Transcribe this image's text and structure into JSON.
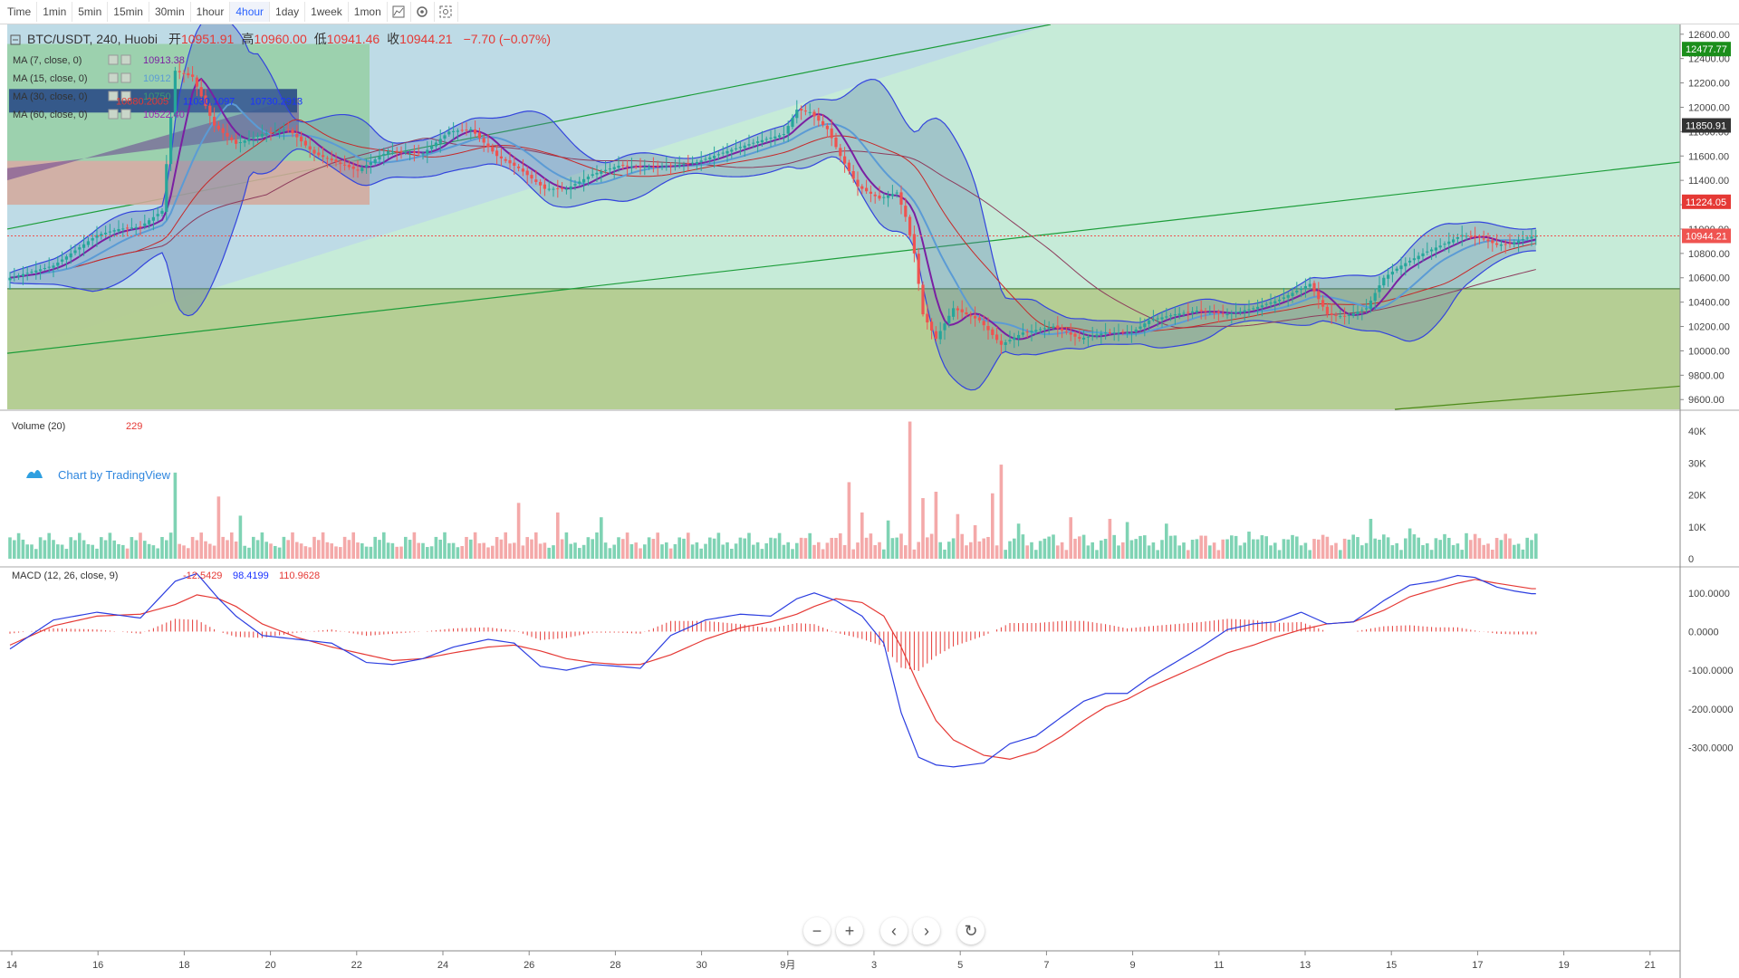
{
  "toolbar": {
    "items": [
      {
        "label": "Time",
        "name": "tf-time"
      },
      {
        "label": "1min",
        "name": "tf-1min"
      },
      {
        "label": "5min",
        "name": "tf-5min"
      },
      {
        "label": "15min",
        "name": "tf-15min"
      },
      {
        "label": "30min",
        "name": "tf-30min"
      },
      {
        "label": "1hour",
        "name": "tf-1hour"
      },
      {
        "label": "4hour",
        "name": "tf-4hour",
        "active": true
      },
      {
        "label": "1day",
        "name": "tf-1day"
      },
      {
        "label": "1week",
        "name": "tf-1week"
      },
      {
        "label": "1mon",
        "name": "tf-1mon"
      }
    ],
    "icons": [
      "chart-style-icon",
      "settings-icon",
      "screenshot-icon"
    ]
  },
  "legend": {
    "symbol": "BTC/USDT, 240, Huobi",
    "open_label": "开",
    "open": "10951.91",
    "high_label": "高",
    "high": "10960.00",
    "low_label": "低",
    "low": "10941.46",
    "close_label": "收",
    "close": "10944.21",
    "change": "−7.70 (−0.07%)",
    "indicators": [
      {
        "label": "MA (7, close, 0)",
        "value": "10913.38",
        "color": "#7b1fa2"
      },
      {
        "label": "MA (15, close, 0)",
        "value": "10912",
        "color": "#5b9bd5"
      },
      {
        "label": "MA (30, close, 0)",
        "value": "10750",
        "color": "#3d9970"
      },
      {
        "label": "MA (60, close, 0)",
        "value": "10522.40",
        "color": "#9c27b0"
      }
    ],
    "bb_values": [
      "10880.2005",
      "11030.1097",
      "10730.2913"
    ]
  },
  "volume_legend": {
    "label": "Volume (20)",
    "value": "229"
  },
  "macd_legend": {
    "label": "MACD (12, 26, close, 9)",
    "hist": "-12.5429",
    "macd": "98.4199",
    "signal": "110.9628"
  },
  "watermark": "Chart by TradingView",
  "price_badges": [
    {
      "value": "12477.77",
      "color": "#1b8e1b"
    },
    {
      "value": "11850.91",
      "color": "#333333"
    },
    {
      "value": "11224.05",
      "color": "#e53935"
    },
    {
      "value": "10944.21",
      "color": "#ef5350"
    }
  ],
  "colors": {
    "up": "#26a69a",
    "up_fill": "#7fd3b4",
    "down": "#ef5350",
    "down_fill": "#f4a9a9"
  },
  "chart_data": [
    {
      "type": "candlestick",
      "title": "BTC/USDT, 240, Huobi",
      "x_ticks": [
        "14",
        "16",
        "18",
        "20",
        "22",
        "24",
        "26",
        "28",
        "30",
        "9月",
        "3",
        "5",
        "7",
        "9",
        "11",
        "13",
        "15",
        "17",
        "19",
        "21"
      ],
      "y_ticks": [
        "12600.00",
        "12400.00",
        "12200.00",
        "12000.00",
        "11800.00",
        "11600.00",
        "11400.00",
        "11200.00",
        "11000.00",
        "10800.00",
        "10600.00",
        "10400.00",
        "10200.00",
        "10000.00",
        "9800.00",
        "9600.00"
      ],
      "ylim": [
        9520,
        12680
      ],
      "close_anchors": [
        [
          0,
          10600
        ],
        [
          10,
          10700
        ],
        [
          20,
          10950
        ],
        [
          25,
          11000
        ],
        [
          30,
          11020
        ],
        [
          35,
          11150
        ],
        [
          38,
          12300
        ],
        [
          42,
          12250
        ],
        [
          47,
          11850
        ],
        [
          52,
          11700
        ],
        [
          58,
          11780
        ],
        [
          64,
          11820
        ],
        [
          70,
          11620
        ],
        [
          75,
          11550
        ],
        [
          80,
          11480
        ],
        [
          87,
          11640
        ],
        [
          95,
          11620
        ],
        [
          101,
          11800
        ],
        [
          106,
          11820
        ],
        [
          112,
          11600
        ],
        [
          117,
          11500
        ],
        [
          123,
          11330
        ],
        [
          128,
          11330
        ],
        [
          134,
          11450
        ],
        [
          140,
          11520
        ],
        [
          145,
          11510
        ],
        [
          152,
          11520
        ],
        [
          158,
          11550
        ],
        [
          165,
          11640
        ],
        [
          172,
          11720
        ],
        [
          178,
          11780
        ],
        [
          181,
          11980
        ],
        [
          184,
          11960
        ],
        [
          188,
          11820
        ],
        [
          191,
          11600
        ],
        [
          195,
          11350
        ],
        [
          200,
          11250
        ],
        [
          204,
          11300
        ],
        [
          206,
          11100
        ],
        [
          208,
          10800
        ],
        [
          210,
          10300
        ],
        [
          213,
          10100
        ],
        [
          217,
          10350
        ],
        [
          223,
          10250
        ],
        [
          228,
          10050
        ],
        [
          233,
          10150
        ],
        [
          240,
          10200
        ],
        [
          246,
          10100
        ],
        [
          252,
          10150
        ],
        [
          258,
          10150
        ],
        [
          262,
          10250
        ],
        [
          268,
          10300
        ],
        [
          273,
          10330
        ],
        [
          280,
          10300
        ],
        [
          286,
          10350
        ],
        [
          292,
          10420
        ],
        [
          299,
          10550
        ],
        [
          303,
          10300
        ],
        [
          307,
          10280
        ],
        [
          312,
          10350
        ],
        [
          316,
          10600
        ],
        [
          320,
          10700
        ],
        [
          325,
          10800
        ],
        [
          330,
          10880
        ],
        [
          334,
          10950
        ],
        [
          338,
          10930
        ],
        [
          342,
          10870
        ],
        [
          345,
          10880
        ],
        [
          349,
          10930
        ],
        [
          351,
          10944
        ]
      ],
      "ma7_color": "#7b1fa2",
      "ma15_color": "#5b9bd5",
      "ma30_color": "#c62828",
      "ma60_color": "#8d3b5c",
      "bb_color": "#3344dd"
    },
    {
      "type": "bar",
      "title": "Volume (20)",
      "y_ticks": [
        "40K",
        "30K",
        "20K",
        "10K",
        "0"
      ],
      "ylim": [
        0,
        44000
      ],
      "spikes": [
        [
          38,
          27000
        ],
        [
          48,
          19500
        ],
        [
          53,
          13500
        ],
        [
          117,
          17500
        ],
        [
          126,
          14500
        ],
        [
          136,
          13000
        ],
        [
          193,
          24000
        ],
        [
          196,
          14500
        ],
        [
          202,
          12000
        ],
        [
          207,
          43000
        ],
        [
          210,
          19000
        ],
        [
          213,
          21000
        ],
        [
          218,
          14000
        ],
        [
          222,
          10500
        ],
        [
          226,
          20500
        ],
        [
          228,
          29500
        ],
        [
          232,
          11000
        ],
        [
          244,
          13000
        ],
        [
          253,
          12500
        ],
        [
          257,
          11500
        ],
        [
          266,
          11000
        ],
        [
          285,
          8500
        ],
        [
          313,
          12500
        ],
        [
          322,
          9500
        ],
        [
          335,
          8000
        ]
      ]
    },
    {
      "type": "line",
      "title": "MACD (12, 26, close, 9)",
      "y_ticks": [
        "100.0000",
        "0.0000",
        "-100.0000",
        "-200.0000",
        "-300.0000"
      ],
      "ylim": [
        -355,
        165
      ],
      "macd_anchors": [
        [
          0,
          -45
        ],
        [
          10,
          30
        ],
        [
          20,
          50
        ],
        [
          30,
          35
        ],
        [
          38,
          130
        ],
        [
          43,
          150
        ],
        [
          48,
          85
        ],
        [
          52,
          40
        ],
        [
          58,
          -10
        ],
        [
          66,
          -20
        ],
        [
          74,
          -30
        ],
        [
          82,
          -80
        ],
        [
          88,
          -85
        ],
        [
          95,
          -70
        ],
        [
          102,
          -40
        ],
        [
          110,
          -20
        ],
        [
          116,
          -30
        ],
        [
          122,
          -90
        ],
        [
          128,
          -100
        ],
        [
          134,
          -85
        ],
        [
          140,
          -90
        ],
        [
          145,
          -95
        ],
        [
          152,
          -10
        ],
        [
          160,
          30
        ],
        [
          168,
          45
        ],
        [
          175,
          40
        ],
        [
          181,
          85
        ],
        [
          185,
          100
        ],
        [
          190,
          80
        ],
        [
          196,
          40
        ],
        [
          201,
          -30
        ],
        [
          205,
          -210
        ],
        [
          209,
          -325
        ],
        [
          213,
          -345
        ],
        [
          217,
          -350
        ],
        [
          224,
          -340
        ],
        [
          230,
          -290
        ],
        [
          236,
          -270
        ],
        [
          242,
          -220
        ],
        [
          247,
          -180
        ],
        [
          252,
          -160
        ],
        [
          257,
          -160
        ],
        [
          262,
          -120
        ],
        [
          268,
          -80
        ],
        [
          274,
          -40
        ],
        [
          280,
          5
        ],
        [
          286,
          20
        ],
        [
          291,
          25
        ],
        [
          297,
          50
        ],
        [
          303,
          20
        ],
        [
          309,
          25
        ],
        [
          316,
          80
        ],
        [
          322,
          120
        ],
        [
          328,
          130
        ],
        [
          333,
          145
        ],
        [
          337,
          140
        ],
        [
          342,
          115
        ],
        [
          346,
          105
        ],
        [
          350,
          98
        ]
      ],
      "signal_anchors": [
        [
          0,
          -35
        ],
        [
          10,
          15
        ],
        [
          20,
          40
        ],
        [
          30,
          45
        ],
        [
          38,
          70
        ],
        [
          43,
          95
        ],
        [
          48,
          85
        ],
        [
          52,
          65
        ],
        [
          58,
          20
        ],
        [
          66,
          -15
        ],
        [
          74,
          -40
        ],
        [
          82,
          -60
        ],
        [
          88,
          -75
        ],
        [
          95,
          -70
        ],
        [
          102,
          -55
        ],
        [
          110,
          -40
        ],
        [
          116,
          -35
        ],
        [
          122,
          -50
        ],
        [
          128,
          -70
        ],
        [
          134,
          -80
        ],
        [
          140,
          -85
        ],
        [
          145,
          -85
        ],
        [
          152,
          -60
        ],
        [
          160,
          -20
        ],
        [
          168,
          10
        ],
        [
          175,
          25
        ],
        [
          181,
          45
        ],
        [
          185,
          65
        ],
        [
          190,
          85
        ],
        [
          196,
          75
        ],
        [
          201,
          40
        ],
        [
          205,
          -40
        ],
        [
          209,
          -140
        ],
        [
          213,
          -230
        ],
        [
          217,
          -280
        ],
        [
          224,
          -320
        ],
        [
          230,
          -330
        ],
        [
          236,
          -310
        ],
        [
          242,
          -270
        ],
        [
          247,
          -230
        ],
        [
          252,
          -195
        ],
        [
          257,
          -175
        ],
        [
          262,
          -145
        ],
        [
          268,
          -115
        ],
        [
          274,
          -85
        ],
        [
          280,
          -55
        ],
        [
          286,
          -35
        ],
        [
          291,
          -15
        ],
        [
          297,
          5
        ],
        [
          303,
          20
        ],
        [
          309,
          25
        ],
        [
          316,
          55
        ],
        [
          322,
          90
        ],
        [
          328,
          110
        ],
        [
          333,
          125
        ],
        [
          337,
          135
        ],
        [
          342,
          125
        ],
        [
          346,
          118
        ],
        [
          350,
          111
        ]
      ]
    }
  ]
}
